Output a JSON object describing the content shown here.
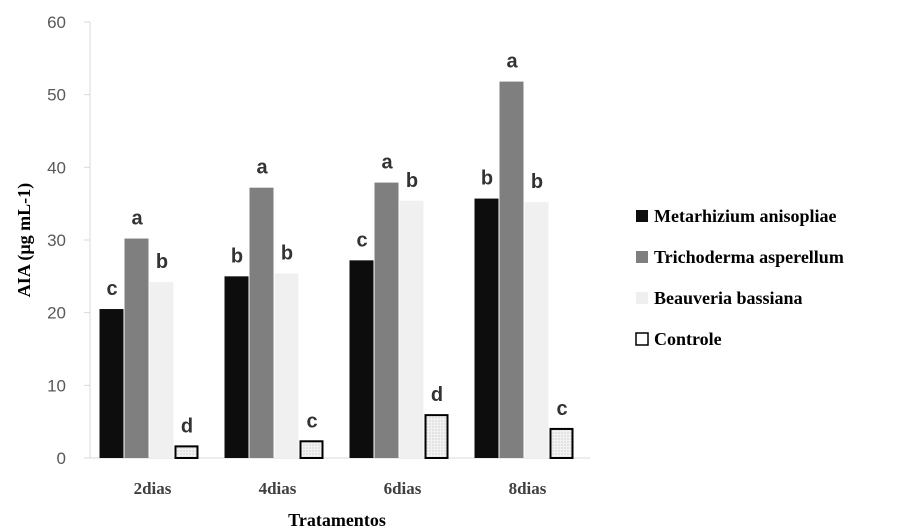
{
  "chart_data": {
    "type": "bar",
    "categories": [
      "2dias",
      "4dias",
      "6dias",
      "8dias"
    ],
    "xlabel": "Tratamentos",
    "ylabel": "AIA (µg mL-1)",
    "ylim": [
      0,
      60
    ],
    "yticks": [
      0,
      10,
      20,
      30,
      40,
      50,
      60
    ],
    "grid": false,
    "legend_position": "right",
    "series": [
      {
        "name": "Metarhizium anisopliae",
        "color": "#0d0d0d",
        "values": [
          20.5,
          25,
          27.2,
          35.7
        ],
        "letters": [
          "c",
          "b",
          "c",
          "b"
        ]
      },
      {
        "name": "Trichoderma asperellum",
        "color": "#7f7f7f",
        "values": [
          30.2,
          37.2,
          37.9,
          51.8
        ],
        "letters": [
          "a",
          "a",
          "a",
          "a"
        ]
      },
      {
        "name": "Beauveria bassiana",
        "color": "#f0f0f0",
        "values": [
          24.2,
          25.4,
          35.4,
          35.2
        ],
        "letters": [
          "b",
          "b",
          "b",
          "b"
        ]
      },
      {
        "name": "Controle",
        "color": "#ececec",
        "values": [
          1.6,
          2.3,
          5.9,
          4.0
        ],
        "letters": [
          "d",
          "c",
          "d",
          "c"
        ]
      }
    ]
  }
}
